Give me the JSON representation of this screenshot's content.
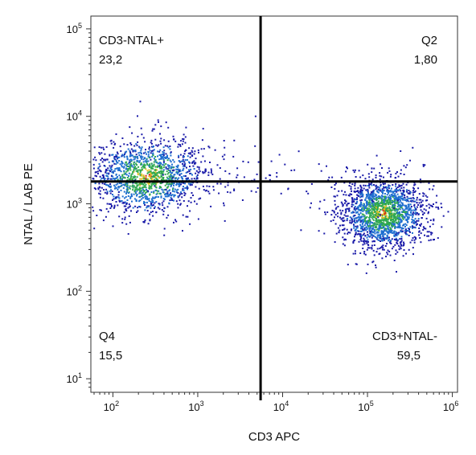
{
  "chart_data": {
    "type": "scatter",
    "subtype": "flow-cytometry-density-dot-plot",
    "xlabel": "CD3 APC",
    "ylabel": "NTAL / LAB PE",
    "x_scale": "log",
    "y_scale": "log",
    "xlim": [
      55,
      1150000
    ],
    "ylim": [
      7,
      140000
    ],
    "x_ticks": [
      {
        "value": 100,
        "base": "10",
        "exp": "2"
      },
      {
        "value": 1000,
        "base": "10",
        "exp": "3"
      },
      {
        "value": 10000,
        "base": "10",
        "exp": "4"
      },
      {
        "value": 100000,
        "base": "10",
        "exp": "5"
      },
      {
        "value": 1000000,
        "base": "10",
        "exp": "6"
      }
    ],
    "y_ticks": [
      {
        "value": 10,
        "base": "10",
        "exp": "1"
      },
      {
        "value": 100,
        "base": "10",
        "exp": "2"
      },
      {
        "value": 1000,
        "base": "10",
        "exp": "3"
      },
      {
        "value": 10000,
        "base": "10",
        "exp": "4"
      },
      {
        "value": 100000,
        "base": "10",
        "exp": "5"
      }
    ],
    "gate": {
      "x": 5500,
      "y": 1800
    },
    "quadrants": [
      {
        "id": "upper-left",
        "name": "CD3-NTAL+",
        "value": "23,2"
      },
      {
        "id": "upper-right",
        "name": "Q2",
        "value": "1,80"
      },
      {
        "id": "lower-left",
        "name": "Q4",
        "value": "15,5"
      },
      {
        "id": "lower-right",
        "name": "CD3+NTAL-",
        "value": "59,5"
      }
    ],
    "populations": [
      {
        "center_x": 250,
        "center_y": 2100,
        "spread_x_decades": 0.35,
        "spread_y_decades": 0.22,
        "weight": 0.45
      },
      {
        "center_x": 150000,
        "center_y": 800,
        "spread_x_decades": 0.25,
        "spread_y_decades": 0.2,
        "weight": 0.55
      }
    ],
    "density_colors": [
      "#1a1aa8",
      "#1f6fd0",
      "#2fa84f",
      "#e0c020",
      "#d02020"
    ],
    "grid": false,
    "legend": "none"
  }
}
